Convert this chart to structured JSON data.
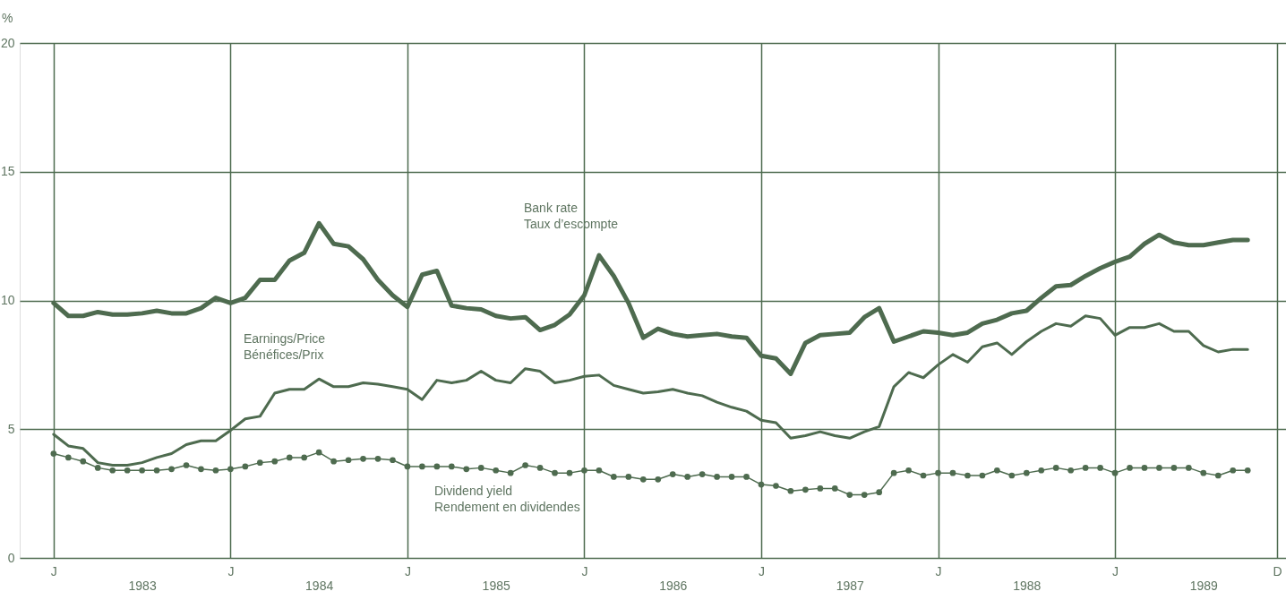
{
  "chart_data": {
    "type": "line",
    "ylabel": "%",
    "categories": [
      "J",
      null,
      null,
      null,
      null,
      null,
      "1983",
      null,
      null,
      null,
      null,
      null,
      "J",
      null,
      null,
      null,
      null,
      null,
      "1984",
      null,
      null,
      null,
      null,
      null,
      "J",
      null,
      null,
      null,
      null,
      null,
      "1985",
      null,
      null,
      null,
      null,
      null,
      "J",
      null,
      null,
      null,
      null,
      null,
      "1986",
      null,
      null,
      null,
      null,
      null,
      "J",
      null,
      null,
      null,
      null,
      null,
      "1987",
      null,
      null,
      null,
      null,
      null,
      "J",
      null,
      null,
      null,
      null,
      null,
      "1988",
      null,
      null,
      null,
      null,
      null,
      "J",
      null,
      null,
      null,
      null,
      null,
      "1989",
      null,
      null,
      null,
      null,
      "D"
    ],
    "series": [
      {
        "color": "#4e6b4f",
        "values": [
          9.9,
          9.4,
          9.4,
          9.55,
          9.45,
          9.45,
          9.5,
          9.6,
          9.5,
          9.5,
          9.7,
          10.1,
          9.9,
          10.1,
          10.8,
          10.8,
          11.55,
          11.85,
          13.0,
          12.2,
          12.1,
          11.6,
          10.8,
          10.2,
          9.75,
          11.0,
          11.15,
          9.8,
          9.7,
          9.65,
          9.4,
          9.3,
          9.35,
          8.85,
          9.05,
          9.45,
          10.2,
          11.75,
          10.95,
          9.9,
          8.55,
          8.9,
          8.7,
          8.6,
          8.65,
          8.7,
          8.6,
          8.55,
          7.85,
          7.75,
          7.15,
          8.35,
          8.65,
          8.7,
          8.75,
          9.35,
          9.7,
          8.4,
          8.6,
          8.8,
          8.75,
          8.65,
          8.75,
          9.1,
          9.25,
          9.5,
          9.6,
          10.1,
          10.55,
          10.6,
          10.95,
          11.25,
          11.5,
          11.7,
          12.2,
          12.55,
          12.25,
          12.15,
          12.15,
          12.25,
          12.35,
          12.35,
          null,
          null
        ]
      },
      {
        "color": "#4e6b4f",
        "values": [
          4.8,
          4.35,
          4.25,
          3.7,
          3.6,
          3.6,
          3.7,
          3.9,
          4.05,
          4.4,
          4.55,
          4.55,
          4.95,
          5.4,
          5.5,
          6.4,
          6.55,
          6.55,
          6.95,
          6.65,
          6.65,
          6.8,
          6.75,
          6.65,
          6.55,
          6.15,
          6.9,
          6.8,
          6.9,
          7.25,
          6.9,
          6.8,
          7.35,
          7.25,
          6.8,
          6.9,
          7.05,
          7.1,
          6.7,
          6.55,
          6.4,
          6.45,
          6.55,
          6.4,
          6.3,
          6.05,
          5.85,
          5.7,
          5.35,
          5.25,
          4.65,
          4.75,
          4.9,
          4.75,
          4.65,
          4.9,
          5.1,
          6.65,
          7.2,
          7.0,
          7.5,
          7.9,
          7.6,
          8.2,
          8.35,
          7.9,
          8.4,
          8.8,
          9.1,
          9.0,
          9.4,
          9.3,
          8.65,
          8.95,
          8.95,
          9.1,
          8.8,
          8.8,
          8.25,
          8.0,
          8.1,
          8.1,
          null,
          null
        ]
      },
      {
        "color": "#4e6b4f",
        "marker": "circle",
        "values": [
          4.05,
          3.9,
          3.75,
          3.5,
          3.4,
          3.4,
          3.4,
          3.4,
          3.45,
          3.6,
          3.45,
          3.4,
          3.45,
          3.55,
          3.7,
          3.75,
          3.9,
          3.9,
          4.1,
          3.75,
          3.8,
          3.85,
          3.85,
          3.8,
          3.55,
          3.55,
          3.55,
          3.55,
          3.45,
          3.5,
          3.4,
          3.3,
          3.6,
          3.5,
          3.3,
          3.3,
          3.4,
          3.4,
          3.15,
          3.15,
          3.05,
          3.05,
          3.25,
          3.15,
          3.25,
          3.15,
          3.15,
          3.15,
          2.85,
          2.8,
          2.6,
          2.65,
          2.7,
          2.7,
          2.45,
          2.45,
          2.55,
          3.3,
          3.4,
          3.2,
          3.3,
          3.3,
          3.2,
          3.2,
          3.4,
          3.2,
          3.3,
          3.4,
          3.5,
          3.4,
          3.5,
          3.5,
          3.3,
          3.5,
          3.5,
          3.5,
          3.5,
          3.5,
          3.3,
          3.2,
          3.4,
          3.4,
          null,
          null
        ]
      }
    ],
    "annotations": [
      "Bank rate\nTaux d’escompte",
      "Earnings/Price\nBénéfices/Prix",
      "Dividend yield\nRendement en dividendes"
    ],
    "ylim": [
      0,
      20
    ],
    "yticks": [
      0,
      5,
      10,
      15,
      20
    ],
    "grid": true,
    "line_style": "solid"
  }
}
